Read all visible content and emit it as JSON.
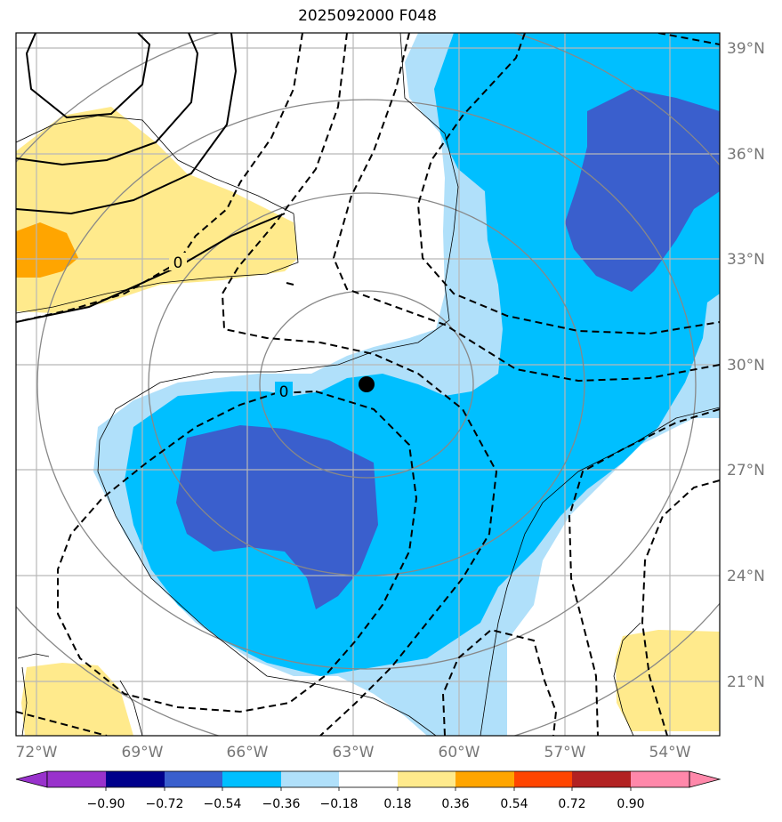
{
  "title": "2025092000 F048",
  "map": {
    "lon_labels": [
      "72°W",
      "69°W",
      "66°W",
      "63°W",
      "60°W",
      "57°W",
      "54°W"
    ],
    "lat_labels": [
      "39°N",
      "36°N",
      "33°N",
      "30°N",
      "27°N",
      "24°N",
      "21°N"
    ],
    "contour_labels": [
      "0",
      "0"
    ],
    "marker": {
      "lon": -62.5,
      "lat": 29.5
    }
  },
  "colorbar": {
    "tick_labels": [
      "−0.90",
      "−0.72",
      "−0.54",
      "−0.36",
      "−0.18",
      "0.18",
      "0.36",
      "0.54",
      "0.72",
      "0.90"
    ],
    "colors": [
      "#9932cc",
      "#00008b",
      "#3a5fcd",
      "#00bfff",
      "#b0e0fa",
      "#ffffff",
      "#ffea8c",
      "#ffa500",
      "#ff4500",
      "#b22222",
      "#ff88aa"
    ]
  }
}
